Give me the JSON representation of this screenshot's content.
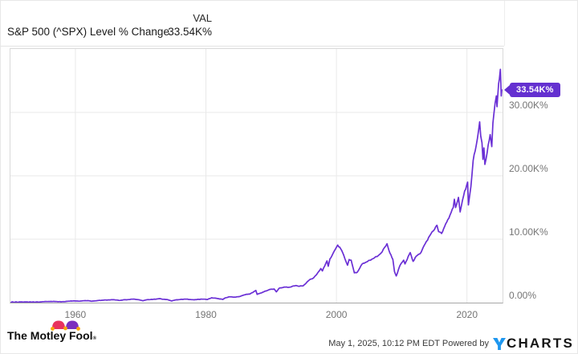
{
  "header": {
    "series_name": "S&P 500 (^SPX) Level % Change",
    "col_label": "VAL",
    "value": "33.54K%"
  },
  "chart_data": {
    "type": "line",
    "title": "S&P 500 (^SPX) Level % Change",
    "xlabel": "",
    "ylabel": "",
    "grid": true,
    "legend_position": "none",
    "xlim": [
      1950.05,
      2025.45
    ],
    "ylim": [
      0,
      40
    ],
    "y_unit": "K% (thousands of percent level change)",
    "last_value_label": "33.54K%",
    "x_ticks": [
      {
        "year": 1960,
        "label": "1960"
      },
      {
        "year": 1980,
        "label": "1980"
      },
      {
        "year": 2000,
        "label": "2000"
      },
      {
        "year": 2020,
        "label": "2020"
      }
    ],
    "y_ticks": [
      {
        "value": 0,
        "label": "0.00%"
      },
      {
        "value": 10,
        "label": "10.00K%"
      },
      {
        "value": 20,
        "label": "20.00K%"
      },
      {
        "value": 30,
        "label": "30.00K%"
      }
    ],
    "series": [
      {
        "name": "S&P 500 (^SPX) Level % Change",
        "color": "#6a2fd5",
        "points": [
          [
            1950.1,
            0
          ],
          [
            1950.6,
            0.01
          ],
          [
            1951.2,
            0.03
          ],
          [
            1952,
            0.05
          ],
          [
            1952.8,
            0.06
          ],
          [
            1953.3,
            0.05
          ],
          [
            1953.8,
            0.04
          ],
          [
            1954.4,
            0.08
          ],
          [
            1955,
            0.15
          ],
          [
            1955.7,
            0.17
          ],
          [
            1956.3,
            0.19
          ],
          [
            1957,
            0.18
          ],
          [
            1957.8,
            0.13
          ],
          [
            1958.5,
            0.18
          ],
          [
            1959.3,
            0.26
          ],
          [
            1959.9,
            0.27
          ],
          [
            1960.5,
            0.23
          ],
          [
            1961,
            0.27
          ],
          [
            1961.9,
            0.32
          ],
          [
            1962.5,
            0.22
          ],
          [
            1963,
            0.28
          ],
          [
            1964,
            0.37
          ],
          [
            1965,
            0.43
          ],
          [
            1965.9,
            0.47
          ],
          [
            1966.7,
            0.34
          ],
          [
            1967.5,
            0.45
          ],
          [
            1968,
            0.47
          ],
          [
            1968.9,
            0.56
          ],
          [
            1969.6,
            0.47
          ],
          [
            1970.4,
            0.31
          ],
          [
            1971,
            0.47
          ],
          [
            1971.8,
            0.5
          ],
          [
            1972.95,
            0.63
          ],
          [
            1973.5,
            0.53
          ],
          [
            1974.2,
            0.45
          ],
          [
            1974.75,
            0.27
          ],
          [
            1975.5,
            0.45
          ],
          [
            1976.8,
            0.56
          ],
          [
            1977.5,
            0.5
          ],
          [
            1978.2,
            0.44
          ],
          [
            1978.7,
            0.52
          ],
          [
            1979.8,
            0.55
          ],
          [
            1980.25,
            0.49
          ],
          [
            1980.9,
            0.77
          ],
          [
            1981.6,
            0.68
          ],
          [
            1982.6,
            0.51
          ],
          [
            1982.95,
            0.75
          ],
          [
            1983.7,
            0.93
          ],
          [
            1984.5,
            0.86
          ],
          [
            1985.3,
            1
          ],
          [
            1986.2,
            1.32
          ],
          [
            1986.7,
            1.34
          ],
          [
            1987.65,
            1.92
          ],
          [
            1987.85,
            1.3
          ],
          [
            1988.4,
            1.5
          ],
          [
            1989.75,
            2.07
          ],
          [
            1990.45,
            2.15
          ],
          [
            1990.8,
            1.69
          ],
          [
            1991.2,
            2.24
          ],
          [
            1992,
            2.45
          ],
          [
            1992.7,
            2.42
          ],
          [
            1993.8,
            2.7
          ],
          [
            1994.3,
            2.57
          ],
          [
            1994.9,
            2.65
          ],
          [
            1995.9,
            3.63
          ],
          [
            1996.5,
            3.9
          ],
          [
            1996.95,
            4.4
          ],
          [
            1997.6,
            5.38
          ],
          [
            1997.85,
            5
          ],
          [
            1998.55,
            6.58
          ],
          [
            1998.75,
            5.73
          ],
          [
            1999,
            6.9
          ],
          [
            1999.5,
            7.8
          ],
          [
            2000.2,
            9.07
          ],
          [
            2000.65,
            8.5
          ],
          [
            2000.95,
            7.9
          ],
          [
            2001.3,
            6.9
          ],
          [
            2001.7,
            5.9
          ],
          [
            2001.95,
            6.8
          ],
          [
            2002.25,
            6.7
          ],
          [
            2002.75,
            4.7
          ],
          [
            2003.2,
            4.8
          ],
          [
            2003.95,
            6.1
          ],
          [
            2004.6,
            6.4
          ],
          [
            2005.5,
            6.9
          ],
          [
            2006.4,
            7.4
          ],
          [
            2007,
            8
          ],
          [
            2007.75,
            9.29
          ],
          [
            2008.2,
            7.8
          ],
          [
            2008.65,
            6.8
          ],
          [
            2008.9,
            4.9
          ],
          [
            2009.17,
            4.2
          ],
          [
            2009.7,
            5.8
          ],
          [
            2010.3,
            6.7
          ],
          [
            2010.5,
            6.1
          ],
          [
            2011.3,
            7.9
          ],
          [
            2011.75,
            6.5
          ],
          [
            2012.2,
            7.3
          ],
          [
            2012.95,
            7.9
          ],
          [
            2013.6,
            9.3
          ],
          [
            2014.5,
            10.9
          ],
          [
            2015.4,
            12.2
          ],
          [
            2015.65,
            11.2
          ],
          [
            2016.1,
            10.9
          ],
          [
            2016.9,
            12.7
          ],
          [
            2017.9,
            15
          ],
          [
            2018.07,
            16.3
          ],
          [
            2018.25,
            15
          ],
          [
            2018.7,
            16.6
          ],
          [
            2018.95,
            14.3
          ],
          [
            2019.5,
            16.9
          ],
          [
            2019.95,
            18.5
          ],
          [
            2020.1,
            19
          ],
          [
            2020.22,
            15.4
          ],
          [
            2020.6,
            18.3
          ],
          [
            2020.95,
            22.4
          ],
          [
            2021.4,
            24.7
          ],
          [
            2021.95,
            28.5
          ],
          [
            2022.1,
            26.3
          ],
          [
            2022.3,
            25.2
          ],
          [
            2022.45,
            22.6
          ],
          [
            2022.6,
            24.4
          ],
          [
            2022.75,
            21.8
          ],
          [
            2023.1,
            23.7
          ],
          [
            2023.55,
            26.5
          ],
          [
            2023.8,
            24.6
          ],
          [
            2023.97,
            28.3
          ],
          [
            2024.3,
            31.4
          ],
          [
            2024.5,
            32.6
          ],
          [
            2024.6,
            30.9
          ],
          [
            2024.85,
            34.5
          ],
          [
            2024.97,
            35.3
          ],
          [
            2025.12,
            36.8
          ],
          [
            2025.25,
            32.6
          ],
          [
            2025.33,
            33.54
          ]
        ]
      }
    ]
  },
  "footer": {
    "attribution": "The Motley Fool",
    "attribution_reg": "®",
    "timestamp": "May 1, 2025, 10:12 PM EDT",
    "powered_by": "Powered by",
    "ycharts_rest": "CHARTS"
  },
  "colors": {
    "line": "#6a2fd5",
    "badge": "#6430d0",
    "grid": "#e9e9e9",
    "axis": "#a6a6a6",
    "tick_text": "#757575",
    "ycharts_blue": "#1e97ef",
    "fool_pink": "#e8325e",
    "fool_purple": "#7b2fbe",
    "fool_gold": "#f7a80d"
  }
}
